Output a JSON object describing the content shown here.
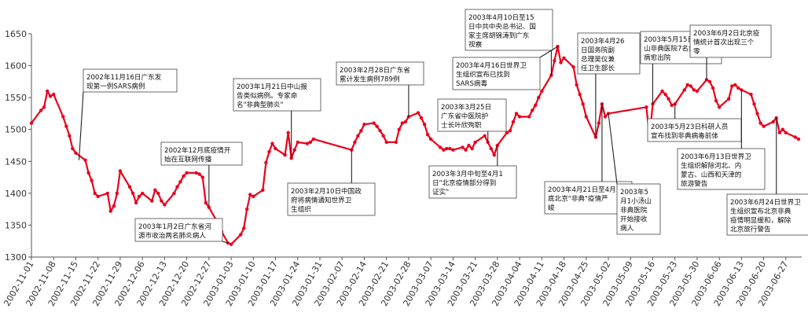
{
  "colors": {
    "line": "#e8001c",
    "axis": "#555555",
    "box_border": "#444444",
    "text": "#111111"
  },
  "chart_data": {
    "type": "line",
    "title": "",
    "xlabel": "",
    "ylabel": "",
    "ylim": [
      1300,
      1650
    ],
    "xlim": [
      "2002-11-01",
      "2003-07-02"
    ],
    "legend": "none",
    "grid": false,
    "y_ticks": [
      1300,
      1350,
      1400,
      1450,
      1500,
      1550,
      1600,
      1650
    ],
    "x_ticks": [
      "2002-11-01",
      "2002-11-08",
      "2002-11-15",
      "2002-11-22",
      "2002-11-29",
      "2002-12-06",
      "2002-12-13",
      "2002-12-20",
      "2002-12-27",
      "2003-01-03",
      "2003-01-10",
      "2003-01-17",
      "2003-01-24",
      "2003-01-31",
      "2003-02-07",
      "2003-02-14",
      "2003-02-21",
      "2003-02-28",
      "2003-03-07",
      "2003-03-14",
      "2003-03-21",
      "2003-03-28",
      "2003-04-04",
      "2003-04-11",
      "2003-04-18",
      "2003-04-25",
      "2003-05-02",
      "2003-05-09",
      "2003-05-16",
      "2003-05-23",
      "2003-05-30",
      "2003-06-06",
      "2003-06-13",
      "2003-06-20",
      "2003-06-27"
    ],
    "series": [
      {
        "name": "",
        "points": [
          [
            "2002-11-01",
            1510
          ],
          [
            "2002-11-04",
            1530
          ],
          [
            "2002-11-05",
            1535
          ],
          [
            "2002-11-06",
            1560
          ],
          [
            "2002-11-07",
            1552
          ],
          [
            "2002-11-08",
            1555
          ],
          [
            "2002-11-11",
            1520
          ],
          [
            "2002-11-12",
            1505
          ],
          [
            "2002-11-13",
            1490
          ],
          [
            "2002-11-14",
            1470
          ],
          [
            "2002-11-15",
            1463
          ],
          [
            "2002-11-18",
            1452
          ],
          [
            "2002-11-19",
            1432
          ],
          [
            "2002-11-20",
            1420
          ],
          [
            "2002-11-21",
            1400
          ],
          [
            "2002-11-22",
            1395
          ],
          [
            "2002-11-25",
            1400
          ],
          [
            "2002-11-26",
            1372
          ],
          [
            "2002-11-27",
            1380
          ],
          [
            "2002-11-28",
            1400
          ],
          [
            "2002-11-29",
            1435
          ],
          [
            "2002-12-02",
            1410
          ],
          [
            "2002-12-03",
            1400
          ],
          [
            "2002-12-04",
            1385
          ],
          [
            "2002-12-05",
            1395
          ],
          [
            "2002-12-06",
            1400
          ],
          [
            "2002-12-09",
            1388
          ],
          [
            "2002-12-10",
            1405
          ],
          [
            "2002-12-11",
            1400
          ],
          [
            "2002-12-12",
            1388
          ],
          [
            "2002-12-13",
            1382
          ],
          [
            "2002-12-16",
            1400
          ],
          [
            "2002-12-17",
            1410
          ],
          [
            "2002-12-18",
            1418
          ],
          [
            "2002-12-19",
            1427
          ],
          [
            "2002-12-20",
            1432
          ],
          [
            "2002-12-23",
            1432
          ],
          [
            "2002-12-24",
            1430
          ],
          [
            "2002-12-25",
            1425
          ],
          [
            "2002-12-26",
            1385
          ],
          [
            "2002-12-27",
            1378
          ],
          [
            "2002-12-30",
            1352
          ],
          [
            "2002-12-31",
            1340
          ],
          [
            "2003-01-02",
            1322
          ],
          [
            "2003-01-03",
            1320
          ],
          [
            "2003-01-06",
            1335
          ],
          [
            "2003-01-07",
            1345
          ],
          [
            "2003-01-08",
            1375
          ],
          [
            "2003-01-09",
            1398
          ],
          [
            "2003-01-10",
            1395
          ],
          [
            "2003-01-13",
            1405
          ],
          [
            "2003-01-14",
            1448
          ],
          [
            "2003-01-15",
            1465
          ],
          [
            "2003-01-16",
            1478
          ],
          [
            "2003-01-17",
            1470
          ],
          [
            "2003-01-20",
            1460
          ],
          [
            "2003-01-21",
            1495
          ],
          [
            "2003-01-22",
            1455
          ],
          [
            "2003-01-23",
            1468
          ],
          [
            "2003-01-24",
            1480
          ],
          [
            "2003-01-27",
            1478
          ],
          [
            "2003-01-28",
            1480
          ],
          [
            "2003-01-29",
            1485
          ],
          [
            "2003-02-10",
            1468
          ],
          [
            "2003-02-11",
            1480
          ],
          [
            "2003-02-12",
            1490
          ],
          [
            "2003-02-13",
            1498
          ],
          [
            "2003-02-14",
            1508
          ],
          [
            "2003-02-17",
            1510
          ],
          [
            "2003-02-18",
            1505
          ],
          [
            "2003-02-19",
            1498
          ],
          [
            "2003-02-20",
            1490
          ],
          [
            "2003-02-21",
            1480
          ],
          [
            "2003-02-24",
            1480
          ],
          [
            "2003-02-25",
            1500
          ],
          [
            "2003-02-26",
            1510
          ],
          [
            "2003-02-27",
            1512
          ],
          [
            "2003-02-28",
            1520
          ],
          [
            "2003-03-03",
            1526
          ],
          [
            "2003-03-04",
            1518
          ],
          [
            "2003-03-05",
            1508
          ],
          [
            "2003-03-06",
            1492
          ],
          [
            "2003-03-07",
            1485
          ],
          [
            "2003-03-10",
            1472
          ],
          [
            "2003-03-11",
            1468
          ],
          [
            "2003-03-12",
            1470
          ],
          [
            "2003-03-13",
            1470
          ],
          [
            "2003-03-14",
            1468
          ],
          [
            "2003-03-17",
            1472
          ],
          [
            "2003-03-18",
            1468
          ],
          [
            "2003-03-19",
            1475
          ],
          [
            "2003-03-20",
            1470
          ],
          [
            "2003-03-21",
            1480
          ],
          [
            "2003-03-24",
            1490
          ],
          [
            "2003-03-25",
            1480
          ],
          [
            "2003-03-26",
            1470
          ],
          [
            "2003-03-27",
            1460
          ],
          [
            "2003-03-28",
            1475
          ],
          [
            "2003-03-31",
            1495
          ],
          [
            "2003-04-01",
            1498
          ],
          [
            "2003-04-02",
            1512
          ],
          [
            "2003-04-03",
            1525
          ],
          [
            "2003-04-04",
            1520
          ],
          [
            "2003-04-07",
            1520
          ],
          [
            "2003-04-08",
            1530
          ],
          [
            "2003-04-09",
            1538
          ],
          [
            "2003-04-10",
            1550
          ],
          [
            "2003-04-11",
            1560
          ],
          [
            "2003-04-14",
            1585
          ],
          [
            "2003-04-15",
            1608
          ],
          [
            "2003-04-16",
            1630
          ],
          [
            "2003-04-17",
            1605
          ],
          [
            "2003-04-18",
            1612
          ],
          [
            "2003-04-21",
            1598
          ],
          [
            "2003-04-22",
            1570
          ],
          [
            "2003-04-23",
            1555
          ],
          [
            "2003-04-24",
            1540
          ],
          [
            "2003-04-25",
            1520
          ],
          [
            "2003-04-28",
            1488
          ],
          [
            "2003-04-29",
            1510
          ],
          [
            "2003-04-30",
            1540
          ],
          [
            "2003-05-01",
            1520
          ],
          [
            "2003-05-02",
            1525
          ],
          [
            "2003-05-14",
            1535
          ],
          [
            "2003-05-15",
            1488
          ],
          [
            "2003-05-16",
            1540
          ],
          [
            "2003-05-19",
            1560
          ],
          [
            "2003-05-20",
            1555
          ],
          [
            "2003-05-21",
            1548
          ],
          [
            "2003-05-22",
            1538
          ],
          [
            "2003-05-23",
            1540
          ],
          [
            "2003-05-26",
            1562
          ],
          [
            "2003-05-27",
            1570
          ],
          [
            "2003-05-28",
            1568
          ],
          [
            "2003-05-29",
            1562
          ],
          [
            "2003-05-30",
            1560
          ],
          [
            "2003-06-02",
            1578
          ],
          [
            "2003-06-03",
            1575
          ],
          [
            "2003-06-04",
            1565
          ],
          [
            "2003-06-05",
            1545
          ],
          [
            "2003-06-06",
            1535
          ],
          [
            "2003-06-09",
            1548
          ],
          [
            "2003-06-10",
            1568
          ],
          [
            "2003-06-11",
            1570
          ],
          [
            "2003-06-12",
            1565
          ],
          [
            "2003-06-13",
            1562
          ],
          [
            "2003-06-16",
            1555
          ],
          [
            "2003-06-17",
            1540
          ],
          [
            "2003-06-18",
            1525
          ],
          [
            "2003-06-19",
            1510
          ],
          [
            "2003-06-20",
            1505
          ],
          [
            "2003-06-23",
            1512
          ],
          [
            "2003-06-24",
            1518
          ],
          [
            "2003-06-25",
            1495
          ],
          [
            "2003-06-26",
            1500
          ],
          [
            "2003-06-27",
            1495
          ],
          [
            "2003-06-30",
            1488
          ],
          [
            "2003-07-01",
            1485
          ]
        ]
      }
    ],
    "annotations": [
      {
        "lines": [
          "2002年11月16日广东发",
          "现第一例SARS病例"
        ],
        "target": [
          "2002-11-16",
          1452
        ]
      },
      {
        "lines": [
          "2002年12月底疫情开",
          "始在互联网传播"
        ],
        "target": [
          "2002-12-27",
          1380
        ]
      },
      {
        "lines": [
          "2003年1月2日广东省河",
          "源市收治两名肺炎病人"
        ],
        "target": [
          "2003-01-02",
          1322
        ]
      },
      {
        "lines": [
          "2003年1月21日中山报",
          "告类似病例。专家命",
          "名\"非典型肺炎\""
        ],
        "target": [
          "2003-01-22",
          1455
        ]
      },
      {
        "lines": [
          "2003年2月10日中国政",
          "府将病情通知世界卫",
          "生组织"
        ],
        "target": [
          "2003-02-10",
          1468
        ]
      },
      {
        "lines": [
          "2003年2月28日广东省",
          "累计发生病例789例"
        ],
        "target": [
          "2003-02-28",
          1520
        ]
      },
      {
        "lines": [
          "2003年3月25日",
          "广东省中医院护",
          "士长叶欣殉职"
        ],
        "target": [
          "2003-03-25",
          1480
        ]
      },
      {
        "lines": [
          "2003年3月中旬至4月1",
          "日\"北京疫情部分得到",
          "证实\""
        ],
        "target": [
          "2003-03-28",
          1475
        ]
      },
      {
        "lines": [
          "2003年4月10日至15",
          "日中共中央总书记、国",
          "家主席胡锦涛到广东",
          "视察"
        ],
        "target": [
          "2003-04-14",
          1585
        ]
      },
      {
        "lines": [
          "2003年4月16日世界卫",
          "生组织宣布已找到",
          "SARS病毒"
        ],
        "target": [
          "2003-04-16",
          1630
        ]
      },
      {
        "lines": [
          "2003年4月26",
          "日国务院副",
          "总理吴仪兼",
          "任卫生部长"
        ],
        "target": [
          "2003-04-28",
          1488
        ]
      },
      {
        "lines": [
          "2003年4月21日至4月",
          "底北京\"非典\"疫情严",
          "峻"
        ],
        "target": [
          "2003-04-30",
          1540
        ]
      },
      {
        "lines": [
          "2003年5",
          "月1小汤山",
          "非典医院",
          "开始接收",
          "病人"
        ],
        "target": [
          "2003-05-02",
          1525
        ]
      },
      {
        "lines": [
          "2003年5月15日小汤",
          "山非典医院7名病人",
          "病愈出院"
        ],
        "target": [
          "2003-05-16",
          1540
        ]
      },
      {
        "lines": [
          "2003年5月23日科研人员",
          "宣布找到非典病毒前体"
        ],
        "target": [
          "2003-05-23",
          1540
        ]
      },
      {
        "lines": [
          "2003年6月2日北京疫",
          "情统计首次出现三个",
          "零"
        ],
        "target": [
          "2003-06-02",
          1578
        ]
      },
      {
        "lines": [
          "2003年6月13日世界卫",
          "生组织解除河北、内",
          "蒙古、山西和天津的",
          "旅游警告"
        ],
        "target": [
          "2003-06-13",
          1562
        ]
      },
      {
        "lines": [
          "2003年6月24日世界卫",
          "生组织宣布北京非典",
          "疫情明显缓和，解除",
          "北京旅行警告"
        ],
        "target": [
          "2003-06-24",
          1518
        ]
      }
    ]
  }
}
